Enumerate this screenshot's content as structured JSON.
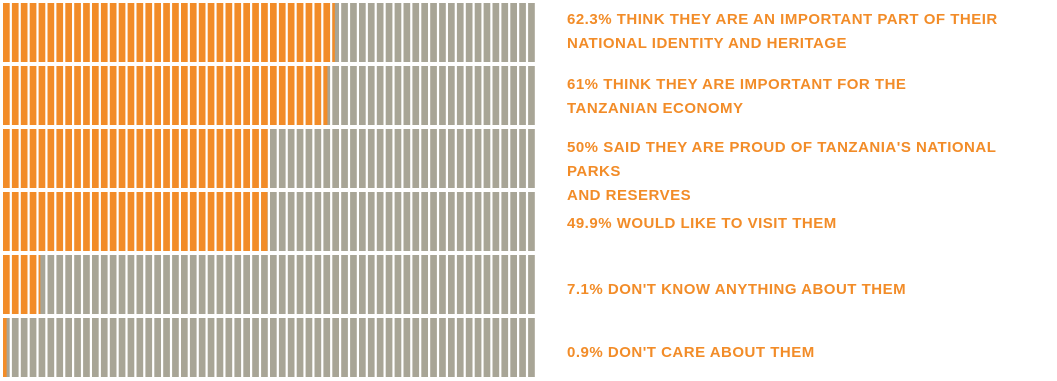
{
  "chart_data": {
    "type": "bar",
    "style": "waffle",
    "segments_per_row": 60,
    "colors": {
      "filled": "#f28c28",
      "empty": "#a8a596",
      "label": "#f28c28"
    },
    "series": [
      {
        "value": 62.3,
        "label_lines": [
          "62.3% THINK THEY ARE AN IMPORTANT PART OF THEIR",
          "NATIONAL IDENTITY AND HERITAGE"
        ]
      },
      {
        "value": 61,
        "label_lines": [
          "61% THINK THEY ARE IMPORTANT FOR THE",
          "TANZANIAN ECONOMY"
        ]
      },
      {
        "value": 50,
        "label_lines": [
          "50% SAID THEY ARE PROUD OF TANZANIA'S NATIONAL PARKS",
          "AND RESERVES"
        ]
      },
      {
        "value": 49.9,
        "label_lines": [
          "49.9% WOULD LIKE TO VISIT THEM"
        ]
      },
      {
        "value": 7.1,
        "label_lines": [
          "7.1% DON'T KNOW ANYTHING ABOUT THEM"
        ]
      },
      {
        "value": 0.9,
        "label_lines": [
          "0.9% DON'T CARE ABOUT THEM"
        ]
      }
    ]
  }
}
